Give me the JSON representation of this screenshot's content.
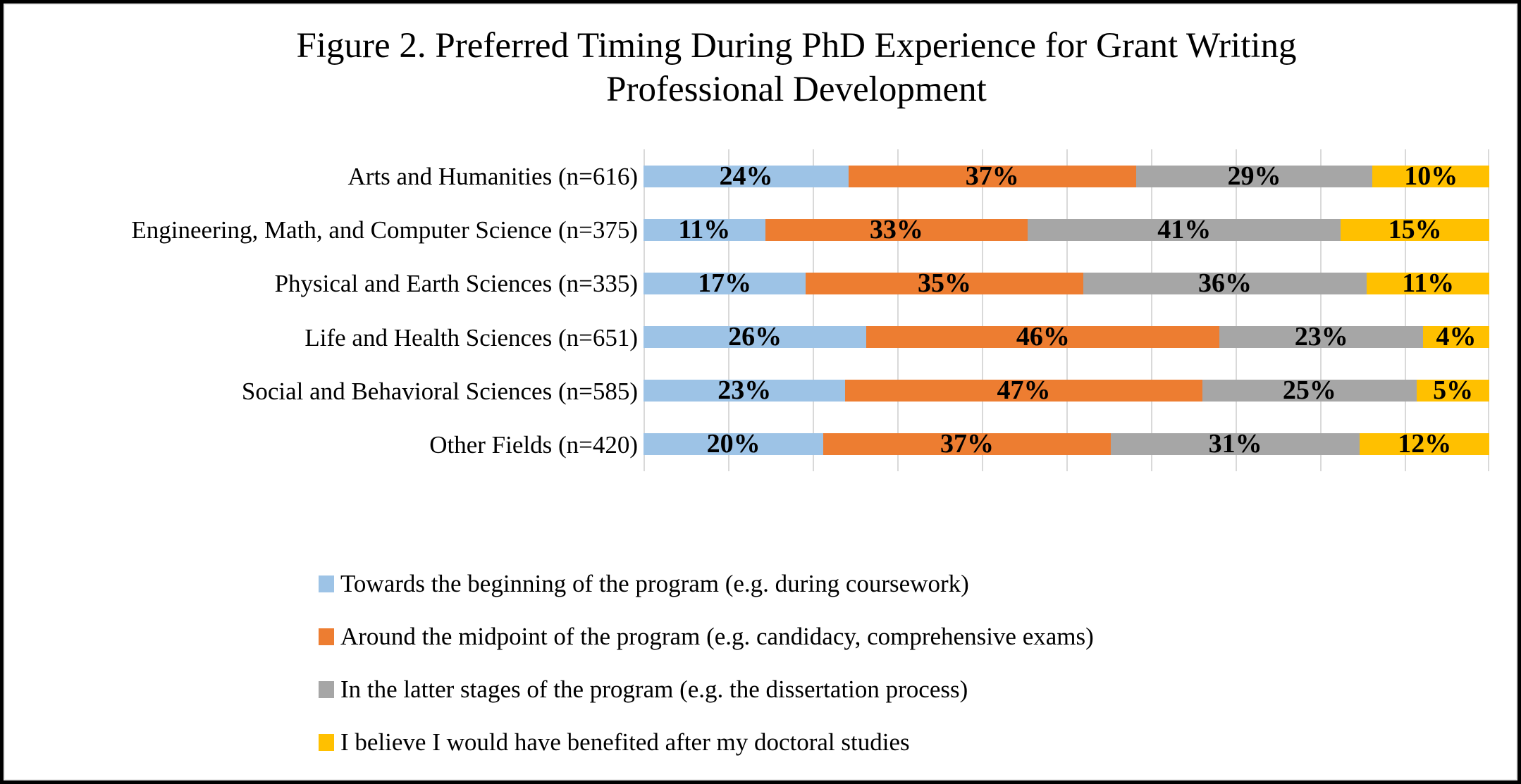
{
  "title": "Figure 2. Preferred Timing During PhD Experience for Grant Writing Professional Development",
  "chart_data": {
    "type": "bar",
    "orientation": "horizontal",
    "stacked": true,
    "normalized_100_percent": true,
    "title": "Figure 2. Preferred Timing During PhD Experience for Grant Writing Professional Development",
    "categories": [
      "Arts and Humanities (n=616)",
      "Engineering, Math, and Computer Science (n=375)",
      "Physical and Earth Sciences (n=335)",
      "Life and Health Sciences (n=651)",
      "Social and Behavioral Sciences (n=585)",
      "Other Fields (n=420)"
    ],
    "series": [
      {
        "name": "Towards the beginning of the program (e.g. during coursework)",
        "color": "#9DC3E6",
        "values": [
          24,
          11,
          17,
          26,
          23,
          20
        ]
      },
      {
        "name": "Around the midpoint of the program (e.g. candidacy, comprehensive exams)",
        "color": "#ED7D31",
        "values": [
          37,
          33,
          35,
          46,
          47,
          37
        ]
      },
      {
        "name": "In the latter stages of the program (e.g. the dissertation process)",
        "color": "#A6A6A6",
        "values": [
          29,
          41,
          36,
          23,
          25,
          31
        ]
      },
      {
        "name": "I believe I would have benefited after my doctoral studies",
        "color": "#FFC000",
        "values": [
          10,
          15,
          11,
          4,
          5,
          12
        ]
      }
    ],
    "data_label_format": "{value}%",
    "xlabel": "",
    "ylabel": "",
    "xlim": [
      0,
      100
    ],
    "gridline_step_percent": 10,
    "grid": true,
    "gridline_color": "#D9D9D9",
    "legend_position": "bottom",
    "axis_tick_labels_visible": false
  }
}
